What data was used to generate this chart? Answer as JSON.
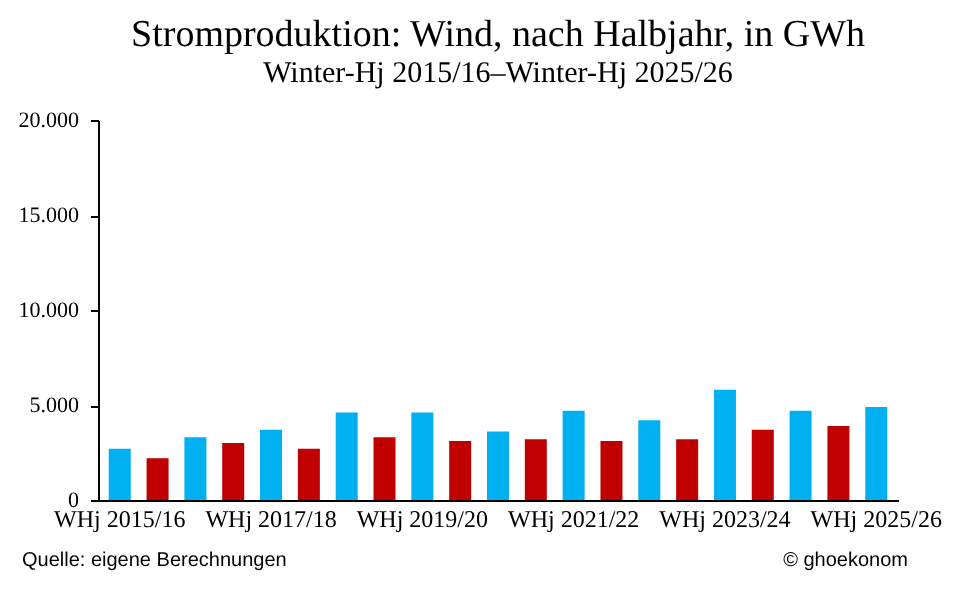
{
  "chart_data": {
    "type": "bar",
    "title": "Stromproduktion: Wind, nach Halbjahr, in GWh",
    "subtitle": "Winter-Hj 2015/16–Winter-Hj 2025/26",
    "categories": [
      "WHj 2015/16",
      null,
      null,
      null,
      "WHj 2017/18",
      null,
      null,
      null,
      "WHj 2019/20",
      null,
      null,
      null,
      "WHj 2021/22",
      null,
      null,
      null,
      "WHj 2023/24",
      null,
      null,
      null,
      "WHj 2025/26"
    ],
    "values": [
      2700,
      2200,
      3300,
      3000,
      3700,
      2700,
      4600,
      3300,
      4600,
      3100,
      3600,
      3200,
      4700,
      3100,
      4200,
      3200,
      5800,
      3700,
      4700,
      3900,
      4900
    ],
    "colors": [
      "#00b0f0",
      "#c00000",
      "#00b0f0",
      "#c00000",
      "#00b0f0",
      "#c00000",
      "#00b0f0",
      "#c00000",
      "#00b0f0",
      "#c00000",
      "#00b0f0",
      "#c00000",
      "#00b0f0",
      "#c00000",
      "#00b0f0",
      "#c00000",
      "#00b0f0",
      "#c00000",
      "#00b0f0",
      "#c00000",
      "#00b0f0"
    ],
    "ylim": [
      0,
      20000
    ],
    "yticks": [
      0,
      {
        "value": 5000,
        "label": "5.000"
      },
      {
        "value": 10000,
        "label": "10.000"
      },
      {
        "value": 15000,
        "label": "15.000"
      },
      {
        "value": 20000,
        "label": "20.000"
      }
    ],
    "grid": false,
    "annotations": [
      "Quelle: eigene Berechnungen",
      "© ghoekonom"
    ]
  }
}
